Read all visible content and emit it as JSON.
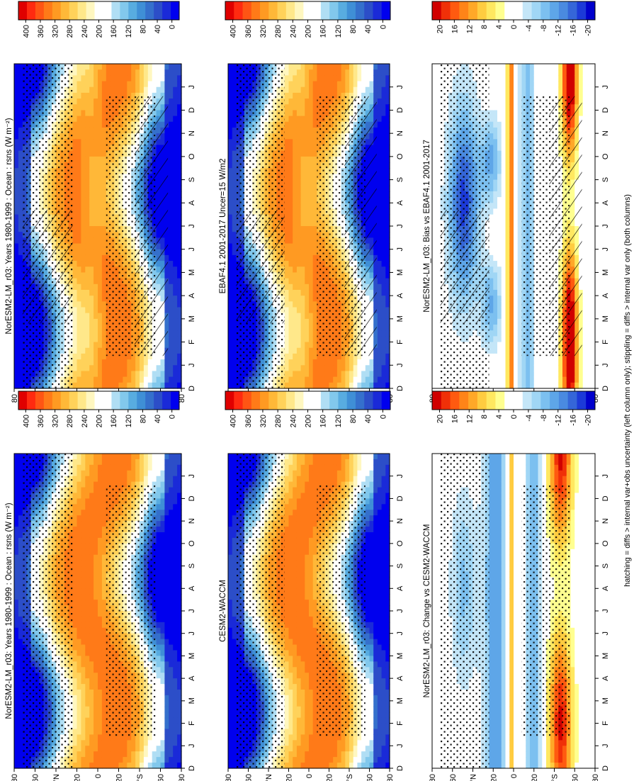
{
  "footnote": "hatching = diffs > internal var+obs uncertainty (left column only); stippling = diffs > internal var only (both columns)",
  "colors": {
    "abs": [
      "#0000ee",
      "#1a2ad8",
      "#2c4ec8",
      "#3570cc",
      "#3f8fd6",
      "#58ace0",
      "#82c8ec",
      "#b0def4",
      "#ffffff",
      "#ffffff",
      "#fff7c0",
      "#ffe88a",
      "#ffd25a",
      "#ffb838",
      "#ff9a22",
      "#ff7a18",
      "#ff5514",
      "#ff2a10",
      "#e00000"
    ],
    "diff": [
      "#0000cc",
      "#1c3ad8",
      "#3566d8",
      "#4a8ae0",
      "#5ea6e8",
      "#7cc0f0",
      "#a0d6f5",
      "#c4e6f8",
      "#ffffff",
      "#ffffff",
      "#ffff90",
      "#ffe860",
      "#ffcc40",
      "#ffa828",
      "#ff8418",
      "#ff5a10",
      "#f03008",
      "#d00000"
    ],
    "stipple": "#000000",
    "hatch": "#000000"
  },
  "colorbars": {
    "abs_ticks": [
      "400",
      "360",
      "320",
      "280",
      "240",
      "200",
      "160",
      "120",
      "80",
      "40",
      "0"
    ],
    "diff_ticks": [
      "20",
      "16",
      "12",
      "8",
      "4",
      "0",
      "-4",
      "-8",
      "-12",
      "-16",
      "-20"
    ]
  },
  "axes": {
    "month_ticks": [
      "D",
      "J",
      "F",
      "M",
      "A",
      "M",
      "J",
      "J",
      "A",
      "S",
      "O",
      "N",
      "D",
      "J"
    ],
    "lat_ticks": [
      "80",
      "60",
      "°N",
      "20",
      "0",
      "20",
      "°S",
      "60",
      "80"
    ]
  },
  "panels": [
    {
      "title": "NorESM2-LM_r03: Years 1980-1999 : Ocean : rsns (W m⁻²)",
      "kind": "abs",
      "hatching": true
    },
    {
      "title": "EBAF4.1 2001-2017 Uncer=15 W/m2",
      "kind": "abs",
      "hatching": true
    },
    {
      "title": "NorESM2-LM_r03: Bias vs EBAF4.1 2001-2017",
      "kind": "diff",
      "hatching": true
    },
    {
      "title": "NorESM2-LM_r03: Years 1980-1999 : Ocean : rsns (W m⁻²)",
      "kind": "abs",
      "hatching": false
    },
    {
      "title": "CESM2-WACCM",
      "kind": "abs",
      "hatching": false
    },
    {
      "title": "NorESM2-LM_r03: Change vs CESM2-WACCM",
      "kind": "diff",
      "hatching": false
    }
  ],
  "chart_data": [
    {
      "type": "heatmap",
      "title": "NorESM2-LM_r03: Years 1980-1999 : Ocean : rsns (W m⁻²)",
      "x": [
        "D",
        "J",
        "F",
        "M",
        "A",
        "M",
        "J",
        "J",
        "A",
        "S",
        "O",
        "N",
        "D",
        "J"
      ],
      "y": [
        "80N",
        "60N",
        "40N",
        "20N",
        "0",
        "20S",
        "40S",
        "60S",
        "80S"
      ],
      "value_range": [
        0,
        400
      ],
      "colorbar_ticks": [
        400,
        360,
        320,
        280,
        240,
        200,
        160,
        120,
        80,
        40,
        0
      ]
    },
    {
      "type": "heatmap",
      "title": "EBAF4.1 2001-2017 Uncer=15 W/m2",
      "x": [
        "D",
        "J",
        "F",
        "M",
        "A",
        "M",
        "J",
        "J",
        "A",
        "S",
        "O",
        "N",
        "D",
        "J"
      ],
      "y": [
        "80N",
        "60N",
        "40N",
        "20N",
        "0",
        "20S",
        "40S",
        "60S",
        "80S"
      ],
      "value_range": [
        0,
        400
      ],
      "colorbar_ticks": [
        400,
        360,
        320,
        280,
        240,
        200,
        160,
        120,
        80,
        40,
        0
      ]
    },
    {
      "type": "heatmap",
      "title": "NorESM2-LM_r03: Bias vs EBAF4.1 2001-2017",
      "x": [
        "D",
        "J",
        "F",
        "M",
        "A",
        "M",
        "J",
        "J",
        "A",
        "S",
        "O",
        "N",
        "D",
        "J"
      ],
      "y": [
        "80N",
        "60N",
        "40N",
        "20N",
        "0",
        "20S",
        "40S",
        "60S",
        "80S"
      ],
      "value_range": [
        -20,
        20
      ],
      "colorbar_ticks": [
        20,
        16,
        12,
        8,
        4,
        0,
        -4,
        -8,
        -12,
        -16,
        -20
      ]
    },
    {
      "type": "heatmap",
      "title": "NorESM2-LM_r03: Years 1980-1999 : Ocean : rsns (W m⁻²)",
      "x": [
        "D",
        "J",
        "F",
        "M",
        "A",
        "M",
        "J",
        "J",
        "A",
        "S",
        "O",
        "N",
        "D",
        "J"
      ],
      "y": [
        "80N",
        "60N",
        "40N",
        "20N",
        "0",
        "20S",
        "40S",
        "60S",
        "80S"
      ],
      "value_range": [
        0,
        400
      ],
      "colorbar_ticks": [
        400,
        360,
        320,
        280,
        240,
        200,
        160,
        120,
        80,
        40,
        0
      ]
    },
    {
      "type": "heatmap",
      "title": "CESM2-WACCM",
      "x": [
        "D",
        "J",
        "F",
        "M",
        "A",
        "M",
        "J",
        "J",
        "A",
        "S",
        "O",
        "N",
        "D",
        "J"
      ],
      "y": [
        "80N",
        "60N",
        "40N",
        "20N",
        "0",
        "20S",
        "40S",
        "60S",
        "80S"
      ],
      "value_range": [
        0,
        400
      ],
      "colorbar_ticks": [
        400,
        360,
        320,
        280,
        240,
        200,
        160,
        120,
        80,
        40,
        0
      ]
    },
    {
      "type": "heatmap",
      "title": "NorESM2-LM_r03: Change vs CESM2-WACCM",
      "x": [
        "D",
        "J",
        "F",
        "M",
        "A",
        "M",
        "J",
        "J",
        "A",
        "S",
        "O",
        "N",
        "D",
        "J"
      ],
      "y": [
        "80N",
        "60N",
        "40N",
        "20N",
        "0",
        "20S",
        "40S",
        "60S",
        "80S"
      ],
      "value_range": [
        -20,
        20
      ],
      "colorbar_ticks": [
        20,
        16,
        12,
        8,
        4,
        0,
        -4,
        -8,
        -12,
        -16,
        -20
      ]
    }
  ]
}
